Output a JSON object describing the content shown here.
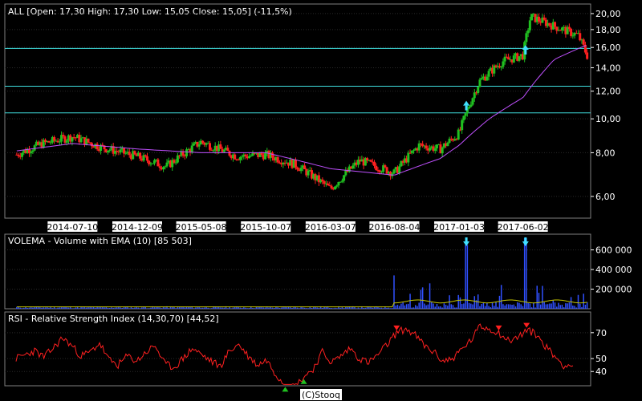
{
  "chart_data": [
    {
      "type": "candlestick",
      "title": "ALL [Open: 17,30  High: 17,30  Low: 15,05  Close: 15,05] (-11,5%)",
      "y_ticks": [
        "20,00",
        "18,00",
        "16,00",
        "14,00",
        "12,00",
        "10,00",
        "8,00",
        "6,00"
      ],
      "y_tick_values": [
        20,
        18,
        16,
        14,
        12,
        10,
        8,
        6
      ],
      "ylim": [
        5.2,
        21.3
      ],
      "y_scale": "log",
      "x_tick_labels": [
        "2014-07-10",
        "2014-12-09",
        "2015-05-08",
        "2015-10-07",
        "2016-03-07",
        "2016-08-04",
        "2017-01-03",
        "2017-06-02"
      ],
      "horizontal_lines": [
        10.4,
        12.4,
        15.9
      ],
      "close_series": [
        {
          "x": "2014-03-01",
          "y": 7.9
        },
        {
          "x": "2014-05-01",
          "y": 8.5
        },
        {
          "x": "2014-07-10",
          "y": 8.9
        },
        {
          "x": "2014-09-15",
          "y": 8.3
        },
        {
          "x": "2014-12-09",
          "y": 7.8
        },
        {
          "x": "2015-02-15",
          "y": 7.3
        },
        {
          "x": "2015-05-08",
          "y": 8.6
        },
        {
          "x": "2015-08-01",
          "y": 7.8
        },
        {
          "x": "2015-10-07",
          "y": 7.9
        },
        {
          "x": "2015-12-15",
          "y": 7.4
        },
        {
          "x": "2016-03-07",
          "y": 6.3
        },
        {
          "x": "2016-05-15",
          "y": 7.6
        },
        {
          "x": "2016-08-04",
          "y": 7.0
        },
        {
          "x": "2016-10-01",
          "y": 8.4
        },
        {
          "x": "2016-11-20",
          "y": 8.2
        },
        {
          "x": "2017-01-03",
          "y": 9.1
        },
        {
          "x": "2017-02-20",
          "y": 12.8
        },
        {
          "x": "2017-04-15",
          "y": 14.6
        },
        {
          "x": "2017-06-02",
          "y": 15.2
        },
        {
          "x": "2017-06-20",
          "y": 19.6
        },
        {
          "x": "2017-08-15",
          "y": 18.4
        },
        {
          "x": "2017-10-10",
          "y": 17.3
        },
        {
          "x": "2017-11-01",
          "y": 15.05
        }
      ],
      "ema_series": [
        {
          "x": "2014-03-01",
          "y": 8.1
        },
        {
          "x": "2014-07-10",
          "y": 8.5
        },
        {
          "x": "2014-12-09",
          "y": 8.2
        },
        {
          "x": "2015-05-08",
          "y": 8.0
        },
        {
          "x": "2015-10-07",
          "y": 8.0
        },
        {
          "x": "2016-03-07",
          "y": 7.2
        },
        {
          "x": "2016-08-04",
          "y": 6.9
        },
        {
          "x": "2016-11-20",
          "y": 7.7
        },
        {
          "x": "2017-01-03",
          "y": 8.4
        },
        {
          "x": "2017-03-15",
          "y": 10.0
        },
        {
          "x": "2017-06-02",
          "y": 11.5
        },
        {
          "x": "2017-08-15",
          "y": 14.8
        },
        {
          "x": "2017-11-01",
          "y": 16.3
        }
      ],
      "signals": [
        {
          "x": "2017-01-20",
          "y": 10.8
        },
        {
          "x": "2017-06-08",
          "y": 15.6
        }
      ]
    },
    {
      "type": "bar",
      "title": "VOLEMA - Volume with EMA (10) [85 503]",
      "y_ticks": [
        "600 000",
        "400 000",
        "200 000"
      ],
      "y_tick_values": [
        600000,
        400000,
        200000
      ],
      "ylim": [
        0,
        760000
      ],
      "spikes": [
        {
          "x": "2016-08-04",
          "y": 340000
        },
        {
          "x": "2017-01-03",
          "y": 140000
        },
        {
          "x": "2017-01-20",
          "y": 650000
        },
        {
          "x": "2017-06-08",
          "y": 720000
        }
      ],
      "ema_level": 85503,
      "signals": [
        "2017-01-20",
        "2017-06-08"
      ]
    },
    {
      "type": "line",
      "title": "RSI - Relative Strength Index (14,30,70) [44,52]",
      "y_ticks": [
        "70",
        "50",
        "40"
      ],
      "y_tick_values": [
        70,
        50,
        40
      ],
      "ylim": [
        29,
        86
      ],
      "series": [
        {
          "values": [
            50,
            53,
            56,
            51,
            58,
            66,
            60,
            52,
            55,
            62,
            49,
            45,
            52,
            48,
            55,
            60,
            46,
            43,
            50,
            58,
            53,
            48,
            44,
            56,
            61,
            52,
            45,
            49,
            38,
            30,
            28,
            36,
            42,
            55,
            47,
            52,
            58,
            50,
            47,
            53,
            61,
            70,
            73,
            68,
            60,
            55,
            48,
            50,
            57,
            64,
            75,
            73,
            70,
            64,
            66,
            72,
            69,
            60,
            52,
            45,
            44.52
          ]
        }
      ],
      "overbought_marks": [
        41,
        52,
        55
      ],
      "oversold_marks": [
        29,
        31
      ]
    }
  ],
  "credit": "(C)Stooq"
}
